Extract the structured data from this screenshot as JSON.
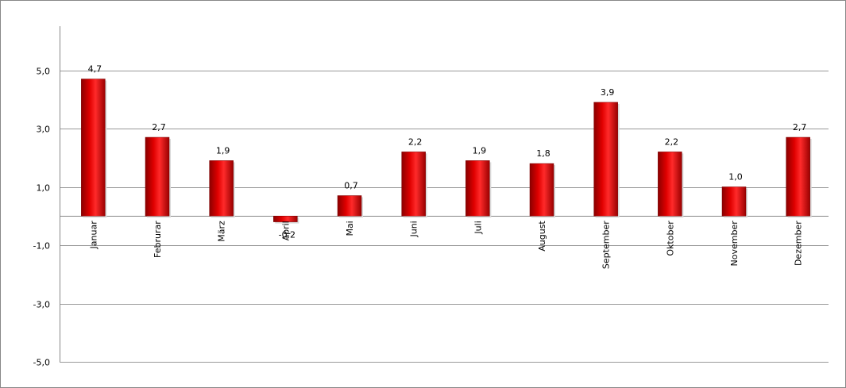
{
  "chart_data": {
    "type": "bar",
    "categories": [
      "Januar",
      "Februrar",
      "März",
      "April",
      "Mai",
      "Juni",
      "Juli",
      "August",
      "September",
      "Oktober",
      "November",
      "Dezember"
    ],
    "values": [
      4.7,
      2.7,
      1.9,
      -0.2,
      0.7,
      2.2,
      1.9,
      1.8,
      3.9,
      2.2,
      1.0,
      2.7
    ],
    "data_labels": [
      "4,7",
      "2,7",
      "1,9",
      "-0,2",
      "0,7",
      "2,2",
      "1,9",
      "1,8",
      "3,9",
      "2,2",
      "1,0",
      "2,7"
    ],
    "y_ticks": [
      5,
      3,
      1,
      -1,
      -3,
      -5
    ],
    "y_tick_labels": [
      "5,0",
      "3,0",
      "1,0",
      "-1,0",
      "-3,0",
      "-5,0"
    ],
    "ylim": [
      -5,
      5
    ],
    "grid": true,
    "legend": "none",
    "title": "",
    "xlabel": "",
    "ylabel": "",
    "bar_color": "#c00000",
    "bar_highlight": "#ff2020",
    "gridline_color": "#999999"
  }
}
